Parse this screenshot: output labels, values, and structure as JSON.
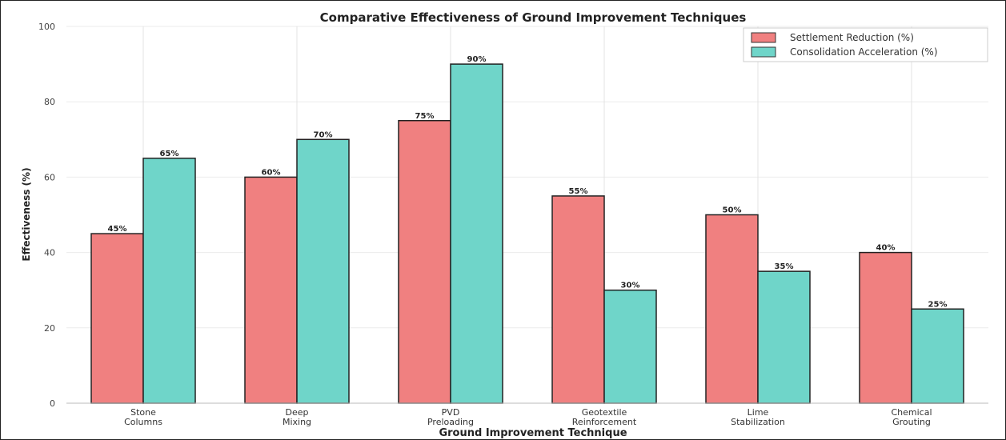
{
  "chart_data": {
    "type": "bar",
    "title": "Comparative Effectiveness of Ground Improvement Techniques",
    "xlabel": "Ground Improvement Technique",
    "ylabel": "Effectiveness (%)",
    "ylim": [
      0,
      100
    ],
    "yticks": [
      0,
      20,
      40,
      60,
      80,
      100
    ],
    "grid": true,
    "legend_position": "top-right",
    "categories": [
      [
        "Stone",
        "Columns"
      ],
      [
        "Deep",
        "Mixing"
      ],
      [
        "PVD",
        "Preloading"
      ],
      [
        "Geotextile",
        "Reinforcement"
      ],
      [
        "Lime",
        "Stabilization"
      ],
      [
        "Chemical",
        "Grouting"
      ]
    ],
    "series": [
      {
        "name": "Settlement Reduction (%)",
        "color": "#f08080",
        "values": [
          45,
          60,
          75,
          55,
          50,
          40
        ]
      },
      {
        "name": "Consolidation Acceleration (%)",
        "color": "#6fd5c9",
        "values": [
          65,
          70,
          90,
          30,
          35,
          25
        ]
      }
    ],
    "value_suffix": "%"
  }
}
